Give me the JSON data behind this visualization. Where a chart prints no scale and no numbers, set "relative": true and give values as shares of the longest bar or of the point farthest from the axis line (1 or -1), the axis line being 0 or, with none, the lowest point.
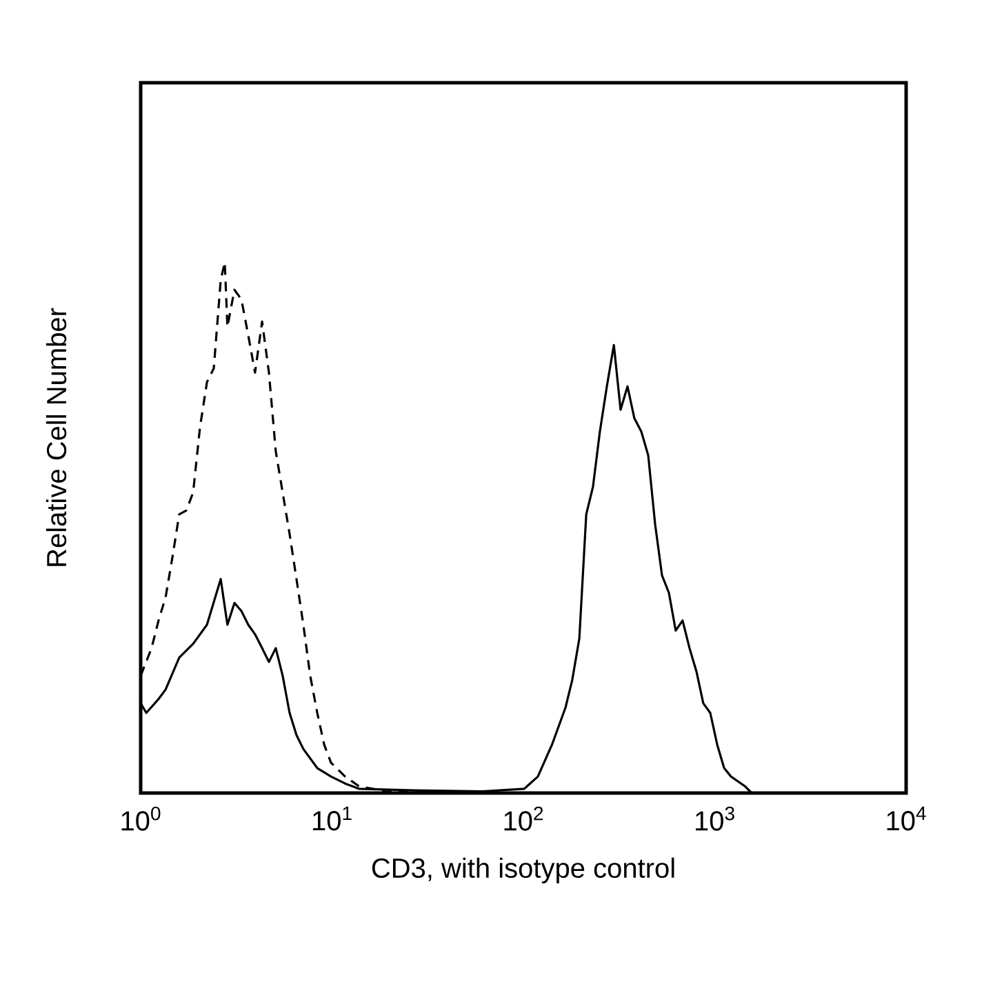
{
  "chart_data": {
    "type": "line",
    "xlabel": "CD3, with isotype control",
    "ylabel": "Relative Cell Number",
    "relative": true,
    "log": "x",
    "grid": false,
    "xlim": [
      1,
      10000
    ],
    "xticks": [
      {
        "value": 1,
        "label": "10$^{0}$"
      },
      {
        "value": 10,
        "label": "10$^{1}$"
      },
      {
        "value": 100,
        "label": "10$^{2}$"
      },
      {
        "value": 1000,
        "label": "10$^{3}$"
      },
      {
        "value": 10000,
        "label": "10$^{4}$"
      }
    ],
    "series": [
      {
        "color": "#000000",
        "line_style": "solid",
        "x": [
          1.0,
          1.07,
          1.24,
          1.35,
          1.59,
          1.88,
          2.22,
          2.62,
          2.84,
          3.09,
          3.36,
          3.65,
          3.96,
          4.31,
          4.68,
          5.08,
          5.52,
          6.0,
          6.52,
          7.08,
          8.37,
          9.88,
          11.7,
          13.8,
          26.7,
          61.3,
          101,
          119,
          141,
          166,
          180,
          196,
          213,
          231,
          251,
          273,
          297,
          322,
          350,
          380,
          413,
          449,
          488,
          530,
          576,
          625,
          679,
          738,
          802,
          871,
          947,
          1030,
          1119,
          1216,
          1435,
          1560
        ],
        "values": [
          0.169,
          0.151,
          0.177,
          0.195,
          0.255,
          0.281,
          0.317,
          0.403,
          0.317,
          0.358,
          0.343,
          0.317,
          0.299,
          0.273,
          0.247,
          0.273,
          0.221,
          0.151,
          0.109,
          0.083,
          0.047,
          0.031,
          0.018,
          0.008,
          0.005,
          0.003,
          0.008,
          0.031,
          0.091,
          0.161,
          0.213,
          0.291,
          0.525,
          0.577,
          0.681,
          0.766,
          0.844,
          0.722,
          0.766,
          0.706,
          0.681,
          0.636,
          0.506,
          0.41,
          0.377,
          0.306,
          0.325,
          0.273,
          0.229,
          0.169,
          0.151,
          0.091,
          0.047,
          0.031,
          0.013,
          0
        ]
      },
      {
        "color": "#000000",
        "line_style": "dashed",
        "x": [
          1.0,
          1.14,
          1.24,
          1.35,
          1.47,
          1.59,
          1.73,
          1.88,
          2.04,
          2.22,
          2.41,
          2.62,
          2.75,
          2.84,
          3.09,
          3.36,
          3.65,
          3.96,
          4.31,
          4.68,
          5.08,
          5.52,
          6.0,
          6.52,
          7.08,
          7.69,
          8.37,
          9.1,
          9.88,
          11.7,
          13.8,
          19.2,
          100,
          1560
        ],
        "values": [
          0.221,
          0.273,
          0.325,
          0.369,
          0.447,
          0.525,
          0.532,
          0.566,
          0.688,
          0.774,
          0.8,
          0.966,
          1.0,
          0.878,
          0.948,
          0.93,
          0.862,
          0.792,
          0.888,
          0.792,
          0.644,
          0.566,
          0.488,
          0.403,
          0.317,
          0.221,
          0.151,
          0.091,
          0.057,
          0.031,
          0.013,
          0.003,
          0,
          0
        ]
      }
    ]
  }
}
